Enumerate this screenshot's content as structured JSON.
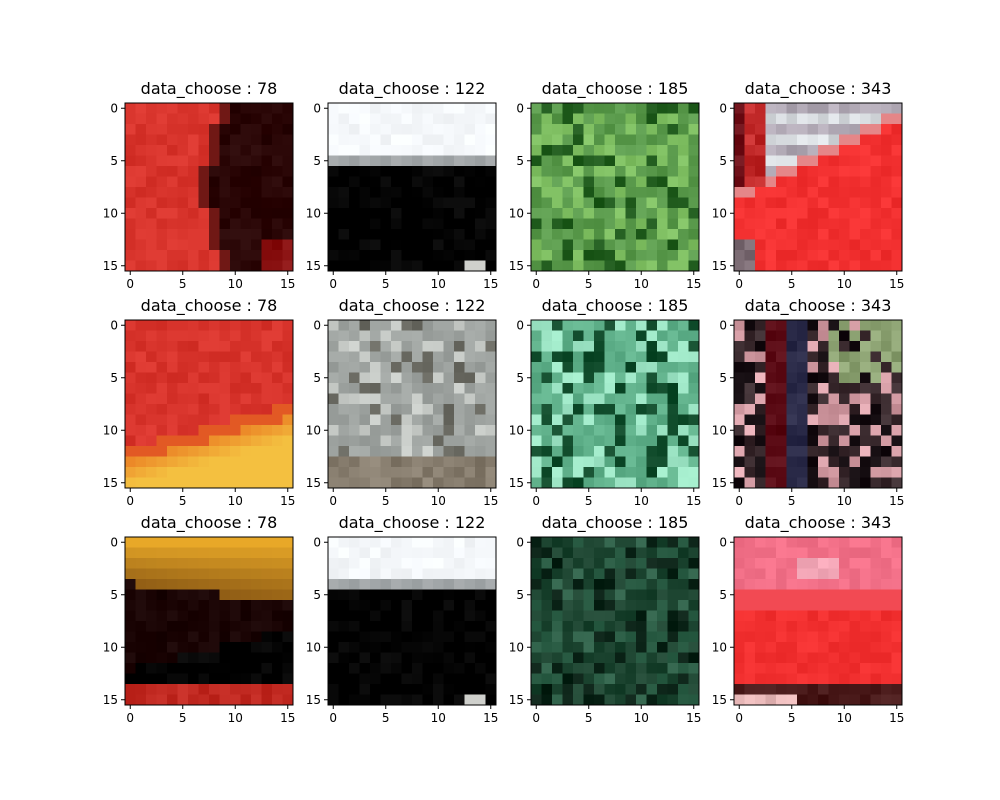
{
  "chart_data": {
    "type": "heatmap",
    "layout": "3x4 grid of 16x16 image patches",
    "image_size": 16,
    "xticks": [
      0,
      5,
      10,
      15
    ],
    "yticks": [
      0,
      5,
      10,
      15
    ],
    "columns": [
      {
        "title": "data_choose : 78",
        "index": 78
      },
      {
        "title": "data_choose : 122",
        "index": 122
      },
      {
        "title": "data_choose : 185",
        "index": 185
      },
      {
        "title": "data_choose : 343",
        "index": 343
      }
    ],
    "panels": [
      {
        "row": 0,
        "col": 0,
        "title": "data_choose : 78",
        "pattern": "red-dark-curve",
        "colors": {
          "bright": "#d8342c",
          "dark": "#2a0606",
          "edge": "#8a1212"
        }
      },
      {
        "row": 0,
        "col": 1,
        "title": "data_choose : 122",
        "pattern": "sky-road",
        "horizon_row": 5,
        "colors": {
          "sky": "#f4f7fa",
          "ground": "#4a5152",
          "spot": "#cfd0cc"
        }
      },
      {
        "row": 0,
        "col": 2,
        "title": "data_choose : 185",
        "pattern": "noise",
        "colors": {
          "base": "#5a9a4c",
          "light": "#7fbf62",
          "dark": "#1f5a1c"
        }
      },
      {
        "row": 0,
        "col": 3,
        "title": "data_choose : 343",
        "pattern": "car-corner",
        "colors": {
          "top": "#b0a8b4",
          "red": "#f23030",
          "dark": "#6a0c14",
          "stripe": "#d8dce0"
        }
      },
      {
        "row": 1,
        "col": 0,
        "title": "data_choose : 78",
        "pattern": "red-yellow-bottom",
        "colors": {
          "red": "#d8342c",
          "orange": "#e8721e",
          "yellow": "#f4c040"
        }
      },
      {
        "row": 1,
        "col": 1,
        "title": "data_choose : 122",
        "pattern": "gray-noise",
        "colors": {
          "base": "#9ea3a0",
          "light": "#c8ccc8",
          "dark": "#6a6a62",
          "bottom": "#877d6e"
        }
      },
      {
        "row": 1,
        "col": 2,
        "title": "data_choose : 185",
        "pattern": "noise",
        "colors": {
          "base": "#5fb08a",
          "light": "#9ee6c6",
          "dark": "#0f4a2a"
        }
      },
      {
        "row": 1,
        "col": 3,
        "title": "data_choose : 343",
        "pattern": "stripes-noise",
        "colors": {
          "base": "#3a2a2e",
          "light": "#d8a0a8",
          "dark": "#140c10",
          "green": "#8aa070",
          "blue": "#2a2a48"
        }
      },
      {
        "row": 2,
        "col": 0,
        "title": "data_choose : 78",
        "pattern": "yellow-dark-red",
        "colors": {
          "yellow": "#e8a828",
          "dark": "#1a0404",
          "red": "#c22a22"
        }
      },
      {
        "row": 2,
        "col": 1,
        "title": "data_choose : 122",
        "pattern": "sky-road",
        "horizon_row": 4,
        "colors": {
          "sky": "#f4f7fa",
          "ground": "#4a5152",
          "spot": "#cfd0cc"
        }
      },
      {
        "row": 2,
        "col": 2,
        "title": "data_choose : 185",
        "pattern": "noise",
        "colors": {
          "base": "#1c4430",
          "light": "#2e6048",
          "dark": "#0a2216"
        }
      },
      {
        "row": 2,
        "col": 3,
        "title": "data_choose : 343",
        "pattern": "pink-red-bottom",
        "colors": {
          "pink": "#f27088",
          "red": "#f23030",
          "dark": "#4a1a1a",
          "light": "#e8b8b8"
        }
      }
    ]
  }
}
